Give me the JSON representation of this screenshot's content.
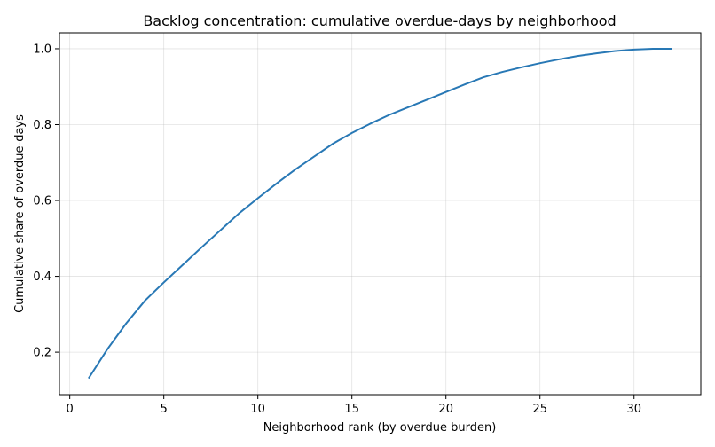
{
  "chart_data": {
    "type": "line",
    "title": "Backlog concentration: cumulative overdue-days by neighborhood",
    "xlabel": "Neighborhood rank (by overdue burden)",
    "ylabel": "Cumulative share of overdue-days",
    "xlim": [
      -0.55,
      33.55
    ],
    "ylim": [
      0.088,
      1.042
    ],
    "xticks": [
      0,
      5,
      10,
      15,
      20,
      25,
      30
    ],
    "yticks": [
      0.2,
      0.4,
      0.6,
      0.8,
      1.0
    ],
    "xtick_labels": [
      "0",
      "5",
      "10",
      "15",
      "20",
      "25",
      "30"
    ],
    "ytick_labels": [
      "0.2",
      "0.4",
      "0.6",
      "0.8",
      "1.0"
    ],
    "grid": true,
    "series": [
      {
        "color": "#2878b5",
        "x": [
          1,
          2,
          3,
          4,
          5,
          6,
          7,
          8,
          9,
          10,
          11,
          12,
          13,
          14,
          15,
          16,
          17,
          18,
          19,
          20,
          21,
          22,
          23,
          24,
          25,
          26,
          27,
          28,
          29,
          30,
          31,
          32
        ],
        "y": [
          0.131,
          0.208,
          0.276,
          0.336,
          0.384,
          0.43,
          0.476,
          0.521,
          0.566,
          0.606,
          0.645,
          0.682,
          0.716,
          0.75,
          0.778,
          0.803,
          0.826,
          0.846,
          0.866,
          0.886,
          0.906,
          0.925,
          0.939,
          0.951,
          0.962,
          0.972,
          0.981,
          0.988,
          0.994,
          0.998,
          1.0,
          1.0
        ]
      }
    ]
  }
}
